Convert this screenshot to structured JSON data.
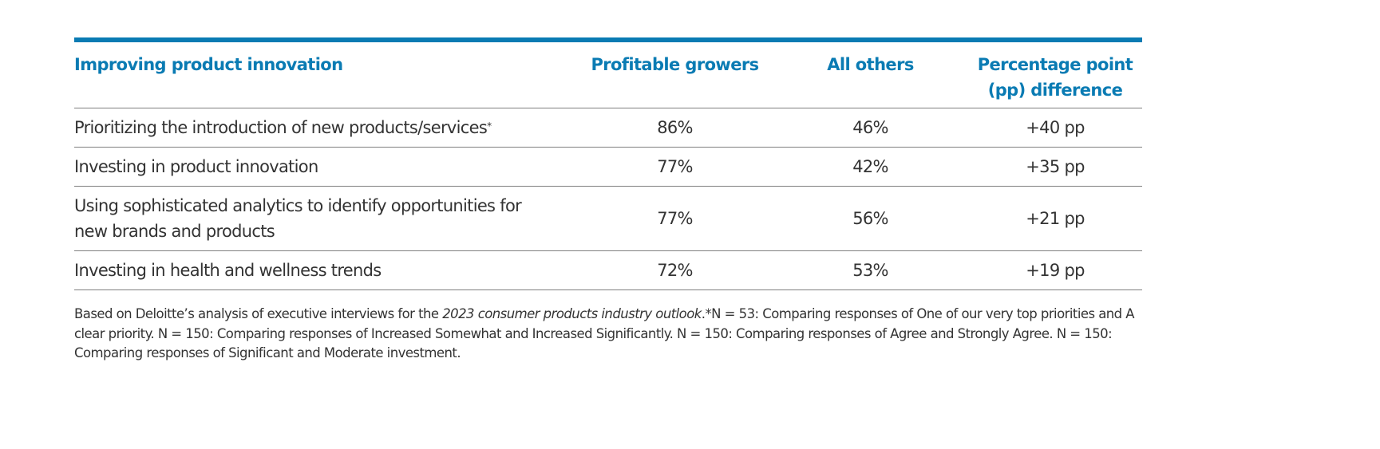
{
  "table": {
    "accent_color": "#0a7bb3",
    "headers": [
      "Improving product innovation",
      "Profitable growers",
      "All others",
      "Percentage point (pp) difference"
    ],
    "rows": [
      {
        "label": "Prioritizing the introduction of new products/services",
        "marker": "*",
        "profitable_growers": "86%",
        "all_others": "46%",
        "difference": "+40 pp"
      },
      {
        "label": "Investing in product innovation",
        "marker": "",
        "profitable_growers": "77%",
        "all_others": "42%",
        "difference": "+35 pp"
      },
      {
        "label": "Using sophisticated analytics to identify opportunities for new brands and products",
        "marker": "",
        "profitable_growers": "77%",
        "all_others": "56%",
        "difference": "+21 pp"
      },
      {
        "label": "Investing in health and wellness trends",
        "marker": "",
        "profitable_growers": "72%",
        "all_others": "53%",
        "difference": "+19 pp"
      }
    ]
  },
  "footnote": {
    "prefix": "Based on Deloitte’s analysis of executive interviews for the ",
    "italic": "2023 consumer products industry outlook",
    "suffix": ".*N = 53: Comparing responses of One of our very top priorities and A clear priority. N = 150: Comparing responses of Increased Somewhat and Increased Significantly. N = 150: Comparing responses of Agree and Strongly Agree. N = 150: Comparing responses of Significant and Moderate investment."
  }
}
